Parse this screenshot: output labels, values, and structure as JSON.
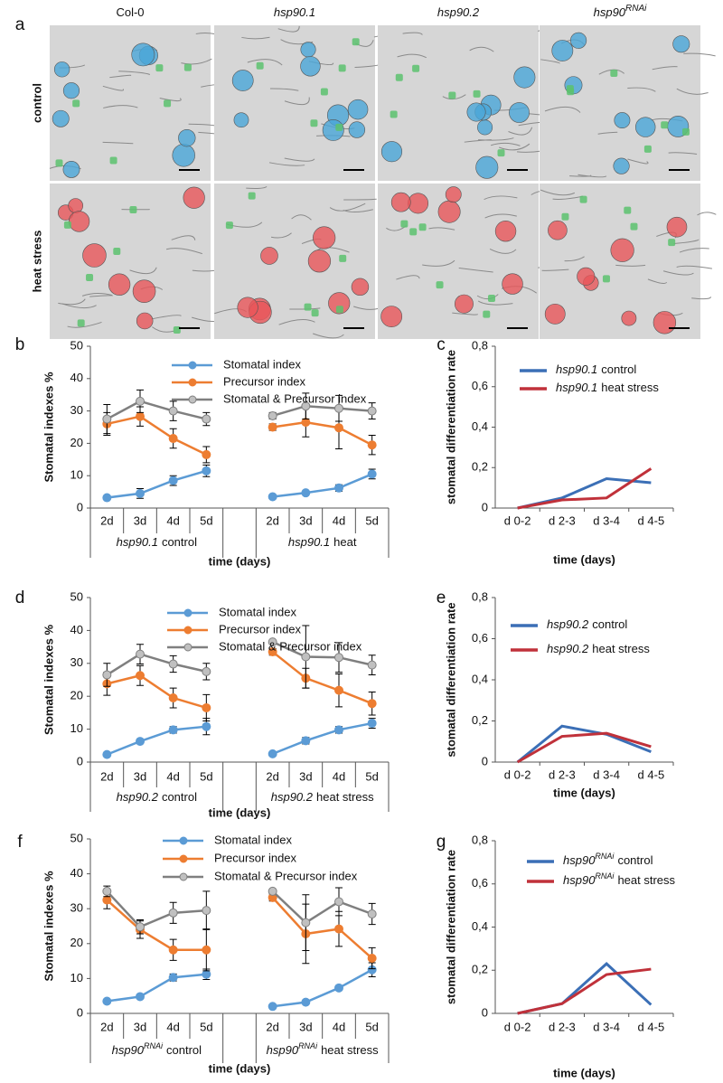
{
  "panel_a": {
    "label": "a",
    "columns": [
      {
        "text": "Col-0",
        "italic": false
      },
      {
        "text": "hsp90.1",
        "italic": true
      },
      {
        "text": "hsp90.2",
        "italic": true
      },
      {
        "text": "hsp90",
        "sup": "RNAi",
        "italic": true
      }
    ],
    "rows": [
      "control",
      "heat stress"
    ]
  },
  "chart_data": [
    {
      "type": "line",
      "label": "b",
      "ylabel": "Stomatal indexes %",
      "xlabel": "time (days)",
      "markers": true,
      "categories": [
        "2d",
        "3d",
        "4d",
        "5d",
        null,
        "2d",
        "3d",
        "4d",
        "5d"
      ],
      "groups": [
        {
          "gene": "hsp90.1",
          "text": "control"
        },
        {
          "gene": "hsp90.1",
          "text": "heat"
        }
      ],
      "ylim": [
        0,
        50
      ],
      "yticks": [
        0,
        10,
        20,
        30,
        40,
        50
      ],
      "series": [
        {
          "name": "Stomatal index",
          "color": "#5b9bd5",
          "values": [
            3.2,
            4.5,
            8.5,
            11.5,
            null,
            3.5,
            4.7,
            6.2,
            10.5
          ],
          "errors": [
            0.5,
            1.5,
            1.5,
            1.8,
            null,
            0.5,
            0.5,
            1,
            1.5
          ]
        },
        {
          "name": "Precursor index",
          "color": "#ed7d31",
          "values": [
            26,
            28.3,
            21.5,
            16.5,
            null,
            25,
            26.5,
            24.8,
            19.5
          ],
          "errors": [
            3.5,
            3,
            3,
            2.5,
            null,
            1,
            4.5,
            6.5,
            3
          ]
        },
        {
          "name": "Stomatal & Precursor index",
          "color": "#7f7f7f",
          "values": [
            27.5,
            33,
            30,
            27.5,
            null,
            28.5,
            31.5,
            30.8,
            30
          ],
          "errors": [
            4.5,
            3.5,
            3,
            2,
            null,
            1,
            4,
            4,
            2.5
          ]
        }
      ]
    },
    {
      "type": "line",
      "label": "c",
      "ylabel": "stomatal differentiation rate",
      "xlabel": "time (days)",
      "markers": false,
      "categories": [
        "d 0-2",
        "d 2-3",
        "d 3-4",
        "d 4-5"
      ],
      "ylim": [
        0,
        0.8
      ],
      "yticks": [
        0,
        {
          "value": 0.2,
          "label": "0,2"
        },
        {
          "value": 0.4,
          "label": "0,4"
        },
        {
          "value": 0.6,
          "label": "0,6"
        },
        {
          "value": 0.8,
          "label": "0,8"
        }
      ],
      "series": [
        {
          "name": {
            "gene": "hsp90.1",
            "text": "control"
          },
          "color": "#3b6fb6",
          "values": [
            0,
            0.05,
            0.145,
            0.125
          ]
        },
        {
          "name": {
            "gene": "hsp90.1",
            "text": "heat stress"
          },
          "color": "#c0313a",
          "values": [
            0,
            0.04,
            0.05,
            0.195
          ]
        }
      ]
    },
    {
      "type": "line",
      "label": "d",
      "ylabel": "Stomatal indexes %",
      "xlabel": "time (days)",
      "markers": true,
      "categories": [
        "2d",
        "3d",
        "4d",
        "5d",
        null,
        "2d",
        "3d",
        "4d",
        "5d"
      ],
      "groups": [
        {
          "gene": "hsp90.2",
          "text": "control"
        },
        {
          "gene": "hsp90.2",
          "text": "heat stress"
        }
      ],
      "ylim": [
        0,
        50
      ],
      "yticks": [
        0,
        10,
        20,
        30,
        40,
        50
      ],
      "series": [
        {
          "name": "Stomatal index",
          "color": "#5b9bd5",
          "values": [
            2.3,
            6.3,
            9.8,
            10.8,
            null,
            2.5,
            6.5,
            9.8,
            11.8
          ],
          "errors": [
            0.3,
            0.5,
            1,
            2.5,
            null,
            0.3,
            1,
            1,
            1.5
          ]
        },
        {
          "name": "Precursor index",
          "color": "#ed7d31",
          "values": [
            23.8,
            26.3,
            19.5,
            16.5,
            null,
            33.5,
            25.5,
            21.8,
            17.8
          ],
          "errors": [
            3.5,
            3,
            3,
            4,
            null,
            1,
            3,
            5,
            3.5
          ]
        },
        {
          "name": "Stomatal & Precursor index",
          "color": "#7f7f7f",
          "values": [
            26.5,
            32.8,
            29.8,
            27.5,
            null,
            36.5,
            32,
            31.8,
            29.5
          ],
          "errors": [
            3.5,
            3,
            2.5,
            2.5,
            null,
            0.5,
            9.5,
            4.5,
            3
          ]
        }
      ]
    },
    {
      "type": "line",
      "label": "e",
      "ylabel": "stomatal differentiation rate",
      "xlabel": "time (days)",
      "markers": false,
      "categories": [
        "d 0-2",
        "d 2-3",
        "d 3-4",
        "d 4-5"
      ],
      "ylim": [
        0,
        0.8
      ],
      "yticks": [
        0,
        {
          "value": 0.2,
          "label": "0,2"
        },
        {
          "value": 0.4,
          "label": "0,4"
        },
        {
          "value": 0.6,
          "label": "0,6"
        },
        {
          "value": 0.8,
          "label": "0,8"
        }
      ],
      "series": [
        {
          "name": {
            "gene": "hsp90.2",
            "text": "control"
          },
          "color": "#3b6fb6",
          "values": [
            0,
            0.175,
            0.135,
            0.05
          ]
        },
        {
          "name": {
            "gene": "hsp90.2",
            "text": "heat stress"
          },
          "color": "#c0313a",
          "values": [
            0,
            0.125,
            0.14,
            0.075
          ]
        }
      ]
    },
    {
      "type": "line",
      "label": "f",
      "ylabel": "Stomatal indexes %",
      "xlabel": "time (days)",
      "markers": true,
      "categories": [
        "2d",
        "3d",
        "4d",
        "5d",
        null,
        "2d",
        "3d",
        "4d",
        "5d"
      ],
      "groups": [
        {
          "gene": "hsp90",
          "sup": "RNAi",
          "text": "control"
        },
        {
          "gene": "hsp90",
          "sup": "RNAi",
          "text": "heat stress"
        }
      ],
      "ylim": [
        0,
        50
      ],
      "yticks": [
        0,
        10,
        20,
        30,
        40,
        50
      ],
      "series": [
        {
          "name": "Stomatal index",
          "color": "#5b9bd5",
          "values": [
            3.5,
            4.8,
            10.3,
            11.2,
            null,
            2,
            3.2,
            7.3,
            12.5
          ],
          "errors": [
            0.5,
            0.5,
            1,
            1.5,
            null,
            0.3,
            0.3,
            0.5,
            2
          ]
        },
        {
          "name": "Precursor index",
          "color": "#ed7d31",
          "values": [
            32.5,
            24,
            18.2,
            18.2,
            null,
            33.2,
            22.8,
            24.2,
            15.8
          ],
          "errors": [
            2.5,
            2.5,
            3,
            6,
            null,
            1,
            8.5,
            5,
            3
          ]
        },
        {
          "name": "Stomatal & Precursor index",
          "color": "#7f7f7f",
          "values": [
            35,
            24.8,
            28.8,
            29.5,
            null,
            35,
            26,
            32,
            28.5
          ],
          "errors": [
            1.5,
            2,
            3,
            5.5,
            null,
            0.5,
            8,
            4,
            3
          ]
        }
      ]
    },
    {
      "type": "line",
      "label": "g",
      "ylabel": "stomatal differentiation rate",
      "xlabel": "time (days)",
      "markers": false,
      "categories": [
        "d 0-2",
        "d 2-3",
        "d 3-4",
        "d 4-5"
      ],
      "ylim": [
        0,
        0.8
      ],
      "yticks": [
        0,
        {
          "value": 0.2,
          "label": "0,2"
        },
        {
          "value": 0.4,
          "label": "0,4"
        },
        {
          "value": 0.6,
          "label": "0,6"
        },
        {
          "value": 0.8,
          "label": "0,8"
        }
      ],
      "series": [
        {
          "name": {
            "gene": "hsp90",
            "sup": "RNAi",
            "text": "control"
          },
          "color": "#3b6fb6",
          "values": [
            0,
            0.045,
            0.23,
            0.04
          ]
        },
        {
          "name": {
            "gene": "hsp90",
            "sup": "RNAi",
            "text": "heat stress"
          },
          "color": "#c0313a",
          "values": [
            0,
            0.045,
            0.18,
            0.205
          ]
        }
      ]
    }
  ]
}
